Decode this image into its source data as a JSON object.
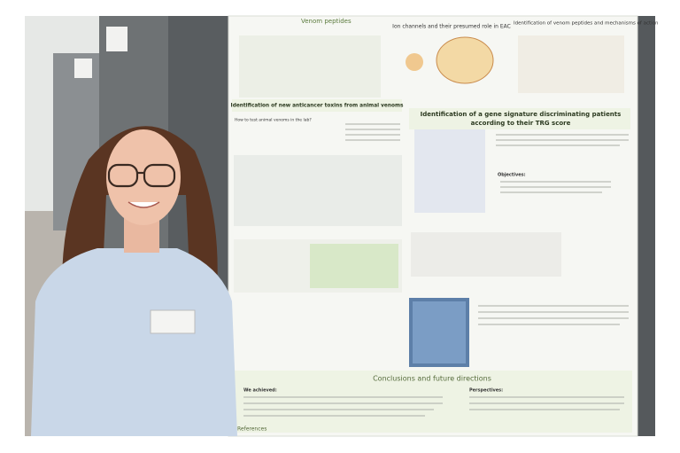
{
  "poster": {
    "top_left": "Venom peptides",
    "top_middle": "Ion channels and their presumed role in EAC",
    "top_right": "Identification of venom peptides and mechanisms of action",
    "left_title": "Identification of new anticancer toxins from animal venoms",
    "left_subtitle": "How to test animal venoms in the lab?",
    "right_title": "Identification of a gene signature discriminating patients according to their TRG score",
    "objectives": "Objectives:",
    "conclusions_title": "Conclusions and future directions",
    "achieved": "We achieved:",
    "perspectives": "Perspectives:",
    "references": "References"
  }
}
